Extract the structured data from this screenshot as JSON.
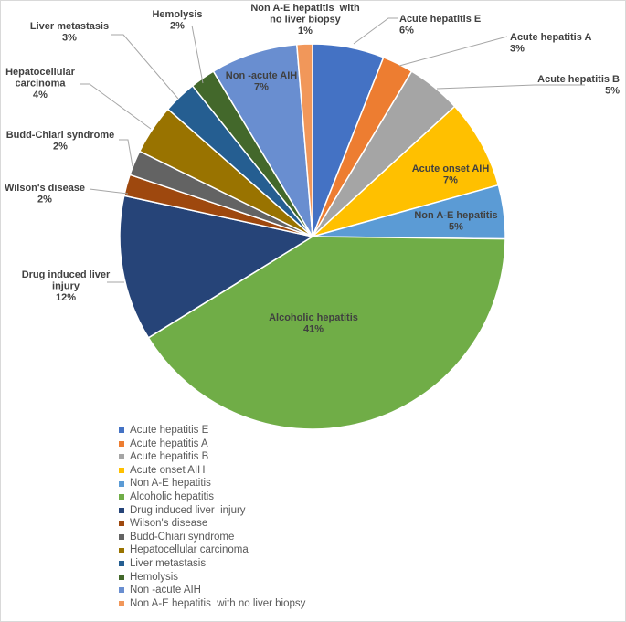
{
  "chart_data": {
    "type": "pie",
    "title": "",
    "legend_position": "bottom-left",
    "slices": [
      {
        "label": "Acute hepatitis E",
        "percent_label": "6%",
        "value": 6,
        "color": "#4472C4"
      },
      {
        "label": "Acute hepatitis A",
        "percent_label": "3%",
        "value": 2.6,
        "color": "#ED7D31"
      },
      {
        "label": "Acute hepatitis B",
        "percent_label": "5%",
        "value": 4.6,
        "color": "#A5A5A5"
      },
      {
        "label": "Acute onset AIH",
        "percent_label": "7%",
        "value": 7.5,
        "color": "#FFC000"
      },
      {
        "label": "Non A-E hepatitis",
        "percent_label": "5%",
        "value": 4.5,
        "color": "#5B9BD5"
      },
      {
        "label": "Alcoholic hepatitis",
        "percent_label": "41%",
        "value": 41,
        "color": "#70AD47"
      },
      {
        "label": "Drug induced liver  injury",
        "percent_label": "12%",
        "value": 12.2,
        "color": "#264478"
      },
      {
        "label": "Wilson's disease",
        "percent_label": "2%",
        "value": 1.8,
        "color": "#9E480E"
      },
      {
        "label": "Budd-Chiari syndrome",
        "percent_label": "2%",
        "value": 2.1,
        "color": "#636363"
      },
      {
        "label": "Hepatocellular carcinoma",
        "percent_label": "4%",
        "value": 4.2,
        "color": "#997300"
      },
      {
        "label": "Liver metastasis",
        "percent_label": "3%",
        "value": 2.8,
        "color": "#255E91"
      },
      {
        "label": "Hemolysis",
        "percent_label": "2%",
        "value": 2.1,
        "color": "#43682B"
      },
      {
        "label": "Non -acute AIH",
        "percent_label": "7%",
        "value": 7.3,
        "color": "#698ED0"
      },
      {
        "label": "Non A-E hepatitis  with no liver biopsy",
        "percent_label": "1%",
        "value": 1.3,
        "color": "#F1975A"
      }
    ]
  }
}
